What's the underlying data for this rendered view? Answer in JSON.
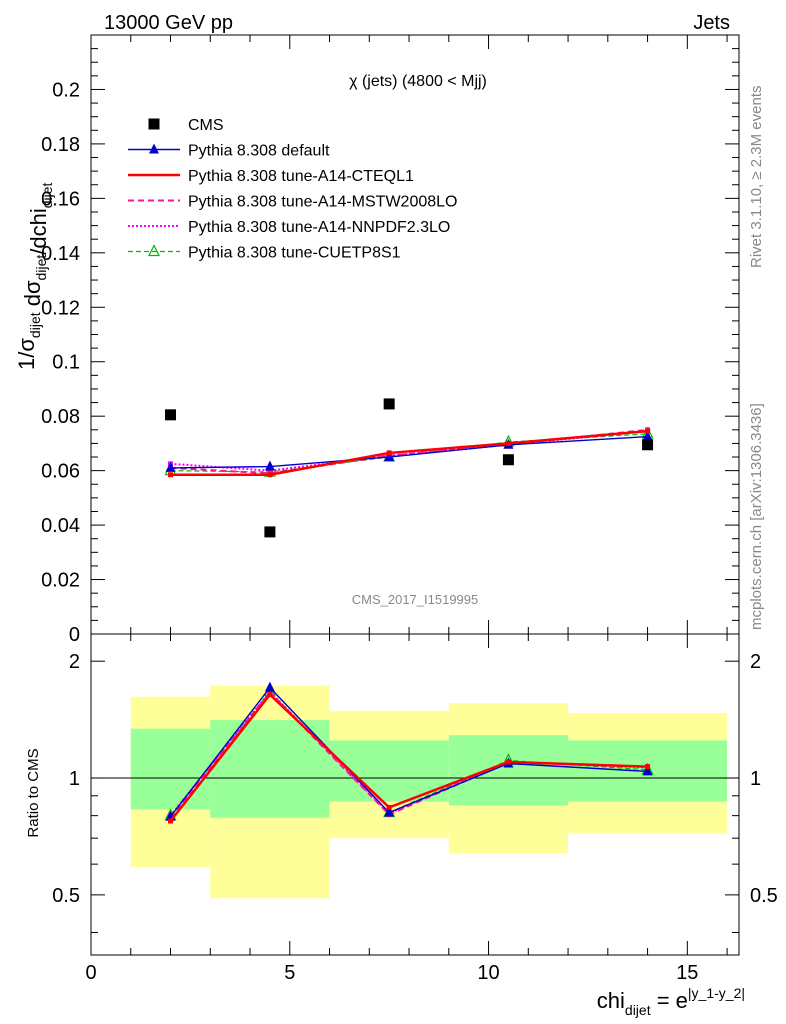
{
  "header": {
    "left": "13000 GeV pp",
    "right": "Jets"
  },
  "side_text": {
    "rivet": "Rivet 3.1.10, ≥ 2.3M events",
    "mcplots": "mcplots.cern.ch [arXiv:1306.3436]"
  },
  "analysis_id": "CMS_2017_I1519995",
  "chart_data": [
    {
      "type": "line",
      "panel": "main",
      "title": "χ (jets) (4800 < Mjj)",
      "ylabel": "1/σ_dijet dσ_dijet/dchi_dijet",
      "ylim": [
        0,
        0.22
      ],
      "yticks": [
        0,
        0.02,
        0.04,
        0.06,
        0.08,
        0.1,
        0.12,
        0.14,
        0.16,
        0.18,
        0.2
      ],
      "ytick_labels": [
        "0",
        "0.02",
        "0.04",
        "0.06",
        "0.08",
        "0.1",
        "0.12",
        "0.14",
        "0.16",
        "0.18",
        "0.2"
      ],
      "xlim": [
        0,
        16.3
      ],
      "x": [
        2,
        4.5,
        7.5,
        10.5,
        14
      ],
      "bin_edges": [
        1,
        3,
        6,
        9,
        12,
        16
      ],
      "legend_placement": "top-left",
      "series": [
        {
          "name": "CMS",
          "values": [
            0.0805,
            0.0375,
            0.0845,
            0.064,
            0.0695
          ],
          "color": "#000000"
        },
        {
          "name": "Pythia 8.308 default",
          "values": [
            0.061,
            0.0615,
            0.065,
            0.0695,
            0.0725
          ],
          "color": "#0000cc"
        },
        {
          "name": "Pythia 8.308 tune-A14-CTEQL1",
          "values": [
            0.0585,
            0.0585,
            0.0665,
            0.07,
            0.0745
          ],
          "color": "#ff0000"
        },
        {
          "name": "Pythia 8.308 tune-A14-MSTW2008LO",
          "values": [
            0.061,
            0.059,
            0.0655,
            0.0695,
            0.075
          ],
          "color": "#ff1493"
        },
        {
          "name": "Pythia 8.308 tune-A14-NNPDF2.3LO",
          "values": [
            0.0625,
            0.06,
            0.0655,
            0.0695,
            0.0745
          ],
          "color": "#ff00ff"
        },
        {
          "name": "Pythia 8.308 tune-CUETP8S1",
          "values": [
            0.06,
            0.0595,
            0.065,
            0.0705,
            0.0735
          ],
          "color": "#00bb00"
        }
      ]
    },
    {
      "type": "line",
      "panel": "ratio",
      "ylabel": "Ratio to CMS",
      "xlabel": "chi_dijet = e^|y_1-y_2|",
      "ylim": [
        0.35,
        2.35
      ],
      "yticks": [
        0.5,
        1,
        2
      ],
      "ytick_labels": [
        "0.5",
        "1",
        "2"
      ],
      "xticks": [
        0,
        5,
        10,
        15
      ],
      "xtick_labels": [
        "0",
        "5",
        "10",
        "15"
      ],
      "x": [
        2,
        4.5,
        7.5,
        10.5,
        14
      ],
      "bands": [
        {
          "name": "yellow",
          "color": "#ffff99",
          "lo": [
            0.59,
            0.49,
            0.7,
            0.64,
            0.72
          ],
          "hi": [
            1.62,
            1.73,
            1.49,
            1.56,
            1.47
          ]
        },
        {
          "name": "green",
          "color": "#99ff99",
          "lo": [
            0.83,
            0.79,
            0.87,
            0.85,
            0.87
          ],
          "hi": [
            1.34,
            1.41,
            1.25,
            1.29,
            1.25
          ]
        }
      ],
      "series": [
        {
          "name": "Pythia 8.308 default",
          "values": [
            0.795,
            1.71,
            0.815,
            1.09,
            1.04
          ],
          "color": "#0000cc"
        },
        {
          "name": "Pythia 8.308 tune-A14-CTEQL1",
          "values": [
            0.775,
            1.64,
            0.84,
            1.1,
            1.07
          ],
          "color": "#ff0000"
        },
        {
          "name": "Pythia 8.308 tune-A14-MSTW2008LO",
          "values": [
            0.79,
            1.66,
            0.805,
            1.1,
            1.07
          ],
          "color": "#ff1493"
        },
        {
          "name": "Pythia 8.308 tune-A14-NNPDF2.3LO",
          "values": [
            0.8,
            1.67,
            0.81,
            1.1,
            1.065
          ],
          "color": "#ff00ff"
        },
        {
          "name": "Pythia 8.308 tune-CUETP8S1",
          "values": [
            0.8,
            1.67,
            0.815,
            1.11,
            1.05
          ],
          "color": "#00bb00"
        }
      ]
    }
  ]
}
